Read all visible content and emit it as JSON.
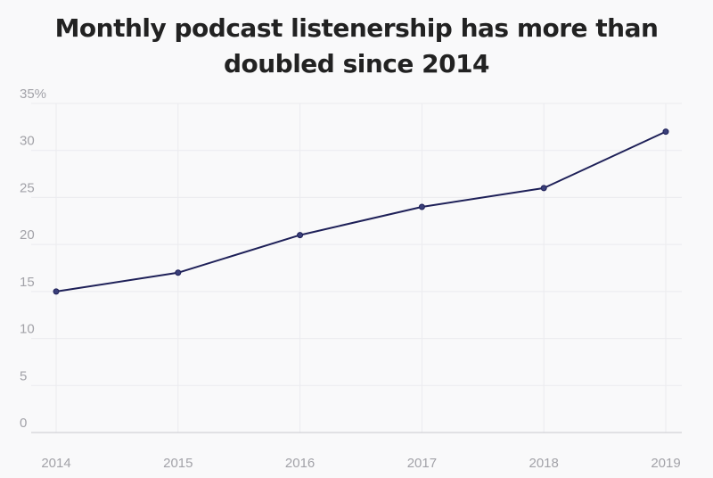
{
  "chart_data": {
    "type": "line",
    "title": "Monthly podcast listenership has more than doubled since 2014",
    "xlabel": "",
    "ylabel": "",
    "x": [
      "2014",
      "2015",
      "2016",
      "2017",
      "2018",
      "2019"
    ],
    "series": [
      {
        "values": [
          15,
          17,
          21,
          24,
          26,
          32
        ]
      }
    ],
    "ylim": [
      0,
      35
    ],
    "yticks": [
      0,
      5,
      10,
      15,
      20,
      25,
      30,
      35
    ],
    "ytick_labels": [
      "0",
      "5",
      "10",
      "15",
      "20",
      "25",
      "30",
      "35%"
    ],
    "grid": true,
    "markers": true,
    "colors": {
      "line": "#1e2058",
      "marker": "#3a3f7a",
      "grid": "#ebebef",
      "baseline": "#c9c9cf",
      "tick_text": "#a2a2a8",
      "title_text": "#222222",
      "background": "#f9f9fa"
    }
  }
}
